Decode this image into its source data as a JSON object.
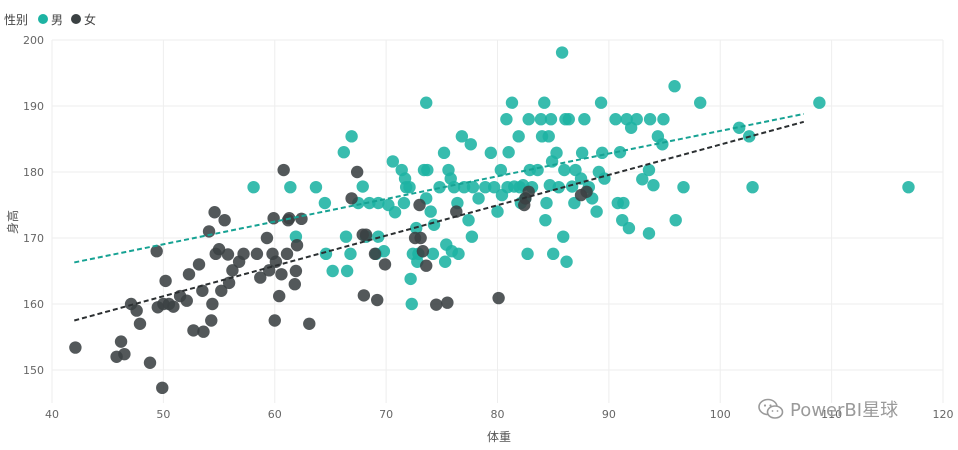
{
  "legend": {
    "title": "性别",
    "items": [
      {
        "label": "男",
        "color": "#1db3a3"
      },
      {
        "label": "女",
        "color": "#3b4143"
      }
    ]
  },
  "watermark": {
    "text": "PowerBI星球"
  },
  "chart_data": {
    "type": "scatter",
    "xlabel": "体重",
    "ylabel": "身高",
    "xlim": [
      40,
      120
    ],
    "ylim": [
      145,
      200
    ],
    "xticks": [
      40,
      50,
      60,
      70,
      80,
      90,
      100,
      110,
      120
    ],
    "yticks": [
      150,
      160,
      170,
      180,
      190,
      200
    ],
    "grid": true,
    "legend_position": "top-left",
    "series": [
      {
        "name": "男",
        "color": "#1db3a3",
        "trend": {
          "x": [
            42,
            107.5
          ],
          "y": [
            166.3,
            188.8
          ]
        },
        "points": [
          [
            58.1,
            177.7
          ],
          [
            61.4,
            177.7
          ],
          [
            61.9,
            170.2
          ],
          [
            63.7,
            177.7
          ],
          [
            64.5,
            175.3
          ],
          [
            64.6,
            167.6
          ],
          [
            65.2,
            165.0
          ],
          [
            66.2,
            183.0
          ],
          [
            66.4,
            170.2
          ],
          [
            66.5,
            165.0
          ],
          [
            66.8,
            167.6
          ],
          [
            66.9,
            185.4
          ],
          [
            67.5,
            175.3
          ],
          [
            67.9,
            177.8
          ],
          [
            68.2,
            170.2
          ],
          [
            68.5,
            175.3
          ],
          [
            69.1,
            167.6
          ],
          [
            69.3,
            175.3
          ],
          [
            69.3,
            170.2
          ],
          [
            69.8,
            168.0
          ],
          [
            70.2,
            175.0
          ],
          [
            70.6,
            181.6
          ],
          [
            70.8,
            173.9
          ],
          [
            71.4,
            180.3
          ],
          [
            71.6,
            175.3
          ],
          [
            71.7,
            179.0
          ],
          [
            71.8,
            177.7
          ],
          [
            72.1,
            177.7
          ],
          [
            72.2,
            163.8
          ],
          [
            72.3,
            160.0
          ],
          [
            72.4,
            167.6
          ],
          [
            72.7,
            171.5
          ],
          [
            72.8,
            166.4
          ],
          [
            72.9,
            167.6
          ],
          [
            73.4,
            180.3
          ],
          [
            73.6,
            190.5
          ],
          [
            73.7,
            180.3
          ],
          [
            73.6,
            176.0
          ],
          [
            74.0,
            174.0
          ],
          [
            74.2,
            167.6
          ],
          [
            74.3,
            172.0
          ],
          [
            74.8,
            177.7
          ],
          [
            75.2,
            182.9
          ],
          [
            75.3,
            166.4
          ],
          [
            75.4,
            169.0
          ],
          [
            75.6,
            180.3
          ],
          [
            75.8,
            179.0
          ],
          [
            75.9,
            168.0
          ],
          [
            76.1,
            177.7
          ],
          [
            76.4,
            175.3
          ],
          [
            76.5,
            167.6
          ],
          [
            76.8,
            185.4
          ],
          [
            77.0,
            177.7
          ],
          [
            77.4,
            172.7
          ],
          [
            77.6,
            184.2
          ],
          [
            77.7,
            170.2
          ],
          [
            77.8,
            177.7
          ],
          [
            78.3,
            176.0
          ],
          [
            78.9,
            177.7
          ],
          [
            79.4,
            182.9
          ],
          [
            79.7,
            177.7
          ],
          [
            80.0,
            174.0
          ],
          [
            80.3,
            180.3
          ],
          [
            80.4,
            176.5
          ],
          [
            80.8,
            188.0
          ],
          [
            80.9,
            177.7
          ],
          [
            81.0,
            183.0
          ],
          [
            81.3,
            190.5
          ],
          [
            81.5,
            177.8
          ],
          [
            81.9,
            185.4
          ],
          [
            82.0,
            177.7
          ],
          [
            82.1,
            175.3
          ],
          [
            82.3,
            178.0
          ],
          [
            82.5,
            176.0
          ],
          [
            82.7,
            167.6
          ],
          [
            82.8,
            188.0
          ],
          [
            82.9,
            180.3
          ],
          [
            83.1,
            177.7
          ],
          [
            83.6,
            180.3
          ],
          [
            83.9,
            188.0
          ],
          [
            84.0,
            185.4
          ],
          [
            84.2,
            190.5
          ],
          [
            84.3,
            172.7
          ],
          [
            84.4,
            175.3
          ],
          [
            84.6,
            185.4
          ],
          [
            84.7,
            178.0
          ],
          [
            84.8,
            188.0
          ],
          [
            84.9,
            181.6
          ],
          [
            85.0,
            167.6
          ],
          [
            85.3,
            182.9
          ],
          [
            85.5,
            177.7
          ],
          [
            85.8,
            198.1
          ],
          [
            85.9,
            170.2
          ],
          [
            86.0,
            180.3
          ],
          [
            86.1,
            188.0
          ],
          [
            86.2,
            166.4
          ],
          [
            86.4,
            188.0
          ],
          [
            86.7,
            177.8
          ],
          [
            86.9,
            175.3
          ],
          [
            87.0,
            180.3
          ],
          [
            87.5,
            179.0
          ],
          [
            87.6,
            182.9
          ],
          [
            87.8,
            188.0
          ],
          [
            88.2,
            177.7
          ],
          [
            88.5,
            176.0
          ],
          [
            88.9,
            174.0
          ],
          [
            89.1,
            180.0
          ],
          [
            89.3,
            190.5
          ],
          [
            89.4,
            182.9
          ],
          [
            89.6,
            179.0
          ],
          [
            90.6,
            188.0
          ],
          [
            90.8,
            175.3
          ],
          [
            91.0,
            183.0
          ],
          [
            91.2,
            172.7
          ],
          [
            91.3,
            175.3
          ],
          [
            91.6,
            188.0
          ],
          [
            91.8,
            171.5
          ],
          [
            92.0,
            186.7
          ],
          [
            92.5,
            188.0
          ],
          [
            93.0,
            178.9
          ],
          [
            93.6,
            180.3
          ],
          [
            93.6,
            170.7
          ],
          [
            93.7,
            188.0
          ],
          [
            94.0,
            178.0
          ],
          [
            94.4,
            185.4
          ],
          [
            94.8,
            184.2
          ],
          [
            94.9,
            188.0
          ],
          [
            95.9,
            193.0
          ],
          [
            96.0,
            172.7
          ],
          [
            96.7,
            177.7
          ],
          [
            98.2,
            190.5
          ],
          [
            101.7,
            186.7
          ],
          [
            102.6,
            185.4
          ],
          [
            102.9,
            177.7
          ],
          [
            108.9,
            190.5
          ],
          [
            116.9,
            177.7
          ]
        ]
      },
      {
        "name": "女",
        "color": "#3b4143",
        "trend": {
          "x": [
            42,
            107.5
          ],
          "y": [
            157.5,
            187.6
          ]
        },
        "points": [
          [
            42.1,
            153.4
          ],
          [
            45.8,
            152.0
          ],
          [
            46.2,
            154.3
          ],
          [
            46.5,
            152.4
          ],
          [
            47.1,
            160.0
          ],
          [
            47.6,
            159.0
          ],
          [
            47.9,
            157.0
          ],
          [
            48.8,
            151.1
          ],
          [
            49.4,
            168.0
          ],
          [
            49.5,
            159.5
          ],
          [
            49.9,
            147.3
          ],
          [
            50.0,
            160.0
          ],
          [
            50.2,
            163.5
          ],
          [
            50.5,
            160.0
          ],
          [
            50.9,
            159.6
          ],
          [
            51.5,
            161.2
          ],
          [
            52.1,
            160.5
          ],
          [
            52.3,
            164.5
          ],
          [
            52.7,
            156.0
          ],
          [
            53.2,
            166.0
          ],
          [
            53.5,
            162.0
          ],
          [
            53.6,
            155.8
          ],
          [
            54.1,
            171.0
          ],
          [
            54.3,
            157.5
          ],
          [
            54.4,
            160.0
          ],
          [
            54.6,
            173.9
          ],
          [
            54.7,
            167.6
          ],
          [
            55.0,
            168.3
          ],
          [
            55.2,
            162.0
          ],
          [
            55.5,
            172.7
          ],
          [
            55.8,
            167.5
          ],
          [
            55.9,
            163.2
          ],
          [
            56.2,
            165.1
          ],
          [
            56.8,
            166.4
          ],
          [
            57.2,
            167.6
          ],
          [
            58.4,
            167.6
          ],
          [
            58.7,
            164.0
          ],
          [
            59.3,
            170.0
          ],
          [
            59.5,
            165.1
          ],
          [
            59.8,
            167.6
          ],
          [
            59.9,
            173.0
          ],
          [
            60.0,
            157.5
          ],
          [
            60.1,
            166.4
          ],
          [
            60.4,
            161.2
          ],
          [
            60.6,
            164.5
          ],
          [
            60.8,
            180.3
          ],
          [
            61.1,
            167.6
          ],
          [
            61.2,
            172.7
          ],
          [
            61.3,
            173.0
          ],
          [
            61.8,
            163.0
          ],
          [
            61.9,
            165.0
          ],
          [
            62.0,
            168.9
          ],
          [
            62.4,
            172.9
          ],
          [
            63.1,
            157.0
          ],
          [
            66.9,
            176.0
          ],
          [
            67.4,
            180.0
          ],
          [
            67.9,
            170.5
          ],
          [
            68.0,
            161.3
          ],
          [
            68.2,
            170.5
          ],
          [
            69.0,
            167.6
          ],
          [
            69.2,
            160.6
          ],
          [
            69.9,
            166.0
          ],
          [
            72.6,
            170.0
          ],
          [
            73.0,
            175.0
          ],
          [
            73.1,
            170.0
          ],
          [
            73.3,
            168.0
          ],
          [
            73.6,
            165.8
          ],
          [
            74.5,
            159.9
          ],
          [
            75.5,
            160.2
          ],
          [
            76.3,
            174.0
          ],
          [
            80.1,
            160.9
          ],
          [
            82.4,
            175.0
          ],
          [
            82.5,
            176.0
          ],
          [
            82.8,
            177.0
          ],
          [
            87.5,
            176.5
          ],
          [
            88.0,
            177.0
          ]
        ]
      }
    ]
  }
}
